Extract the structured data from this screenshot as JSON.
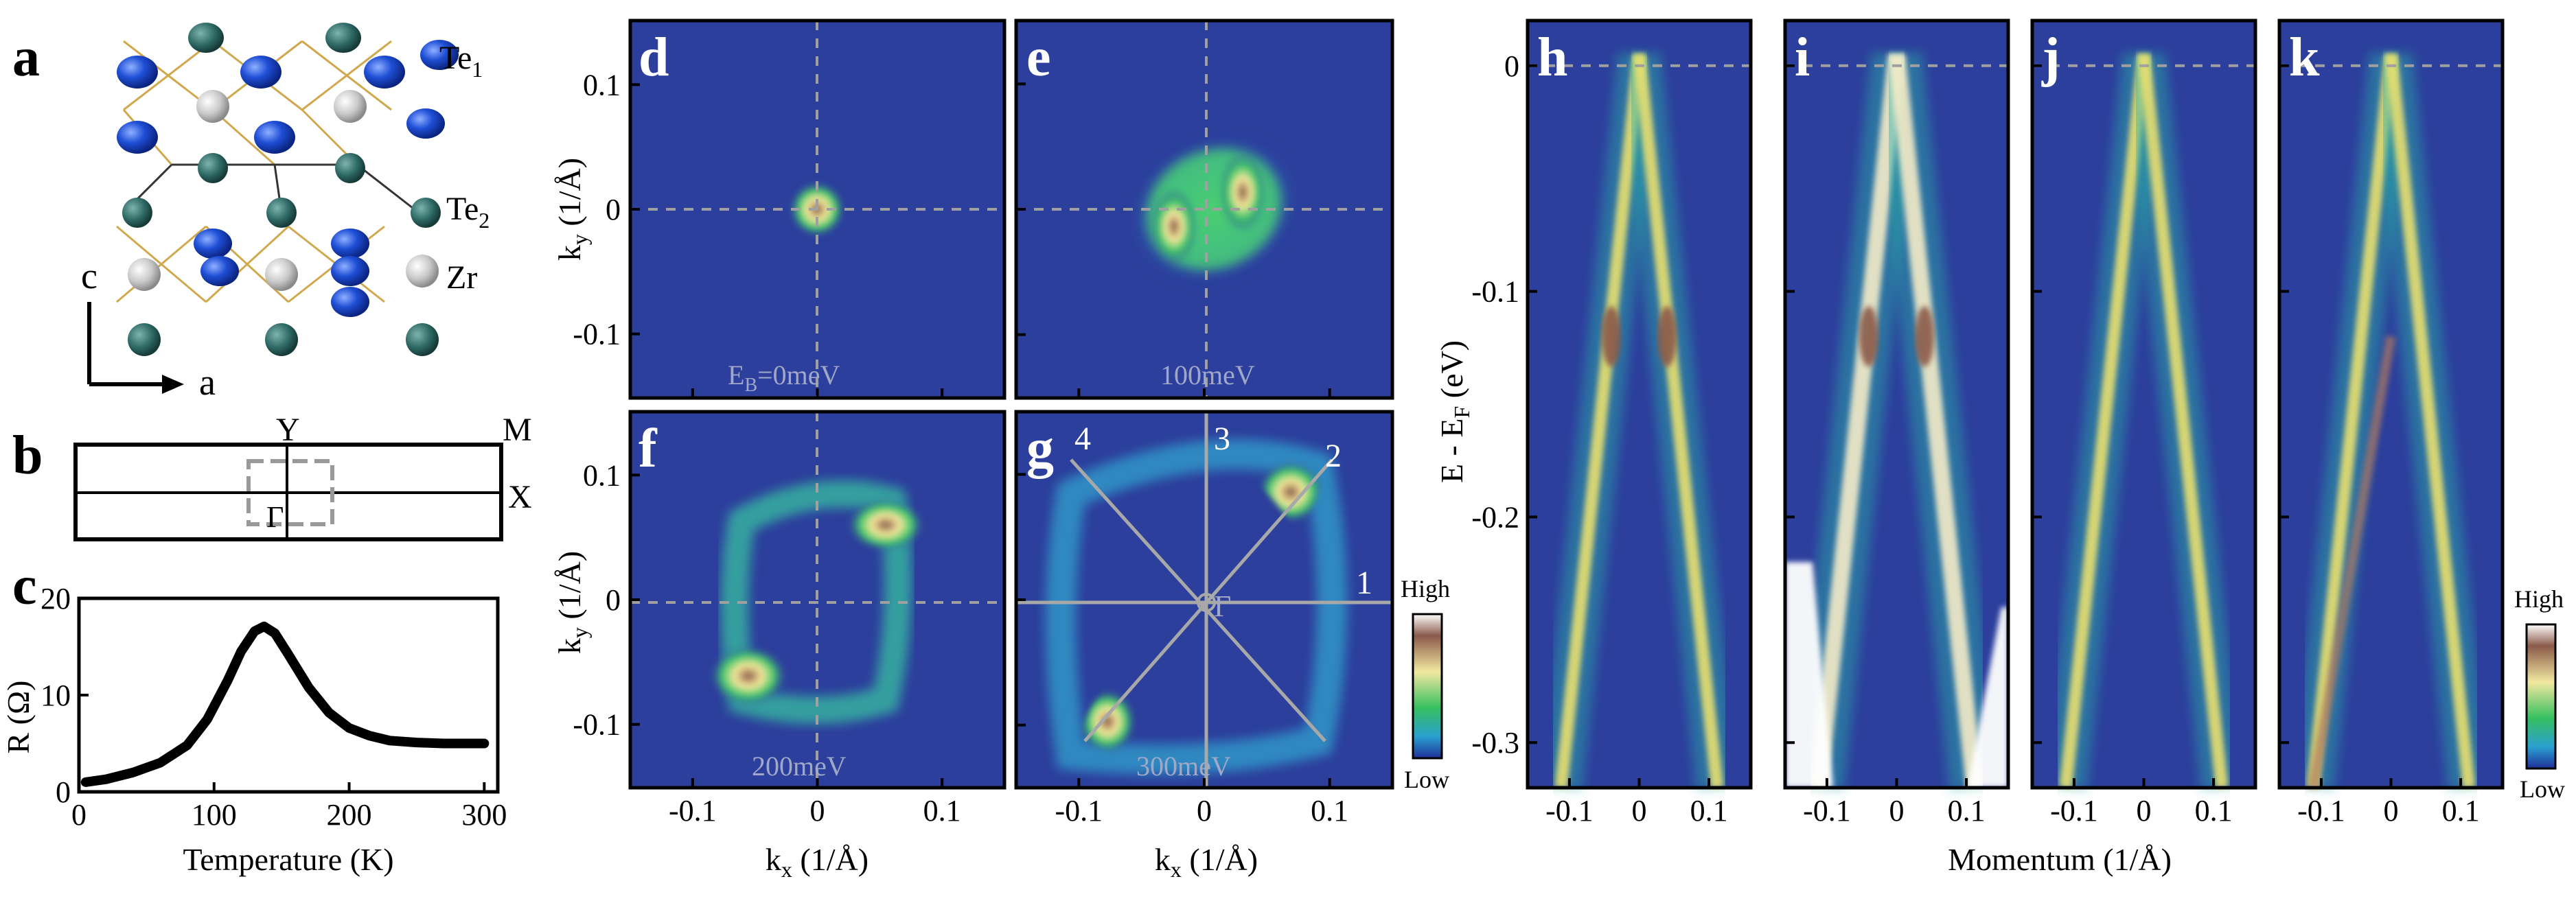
{
  "panel_labels": {
    "a": "a",
    "b": "b",
    "c": "c",
    "d": "d",
    "e": "e",
    "f": "f",
    "g": "g",
    "h": "h",
    "i": "i",
    "j": "j",
    "k": "k"
  },
  "crystal": {
    "atoms": [
      "Te1",
      "Te2",
      "Zr"
    ],
    "axes": {
      "vertical": "c",
      "horizontal": "a"
    },
    "colors": {
      "Te1": "#1f4fd6",
      "Te2": "#2e6a66",
      "Zr": "#c8c8c8",
      "bond": "#c89a30"
    }
  },
  "brillouin_zone": {
    "points": [
      "Y",
      "M",
      "X",
      "Γ"
    ]
  },
  "resistance": {
    "ylabel": "R (Ω)",
    "xlabel": "Temperature (K)",
    "yticks": [
      "0",
      "10",
      "20"
    ],
    "xticks": [
      "0",
      "100",
      "200",
      "300"
    ],
    "chart_data": {
      "type": "line",
      "x": [
        5,
        20,
        40,
        60,
        80,
        95,
        110,
        120,
        130,
        137,
        145,
        155,
        170,
        185,
        200,
        215,
        230,
        250,
        270,
        290,
        300
      ],
      "y": [
        1.0,
        1.3,
        2.0,
        3.0,
        4.8,
        7.5,
        11.5,
        14.5,
        16.6,
        17.1,
        16.4,
        14.2,
        10.8,
        8.2,
        6.6,
        5.8,
        5.3,
        5.1,
        5.0,
        5.0,
        5.0
      ],
      "xlim": [
        0,
        310
      ],
      "ylim": [
        0,
        20
      ]
    }
  },
  "fermi_maps": {
    "kx_label": "k",
    "kx_sub": "x",
    "k_unit": " (1/Å)",
    "ky_label": "k",
    "ky_sub": "y",
    "kx_ticks": [
      "-0.1",
      "0",
      "0.1"
    ],
    "ky_ticks": [
      "0.1",
      "0",
      "-0.1"
    ],
    "d_caption_main": "E",
    "d_caption_sub": "B",
    "d_caption_rest": "=0meV",
    "e_caption": "100meV",
    "f_caption": "200meV",
    "g_caption": "300meV",
    "cut_labels": [
      "1",
      "2",
      "3",
      "4"
    ],
    "gamma": "Γ",
    "colorbar": {
      "high": "High",
      "low": "Low"
    }
  },
  "cuts": {
    "ylabel_main": "E - E",
    "ylabel_sub": "F",
    "ylabel_unit": " (eV)",
    "yticks": [
      "0",
      "-0.1",
      "-0.2",
      "-0.3"
    ],
    "xticks": [
      "-0.1",
      "0",
      "0.1"
    ],
    "xlabel": "Momentum (1/Å)",
    "colorbar": {
      "high": "High",
      "low": "Low"
    }
  },
  "colors": {
    "map_bg": "#2c3f9c",
    "dashed": "#a0a0a0",
    "cut_line": "#a8a8a8"
  }
}
